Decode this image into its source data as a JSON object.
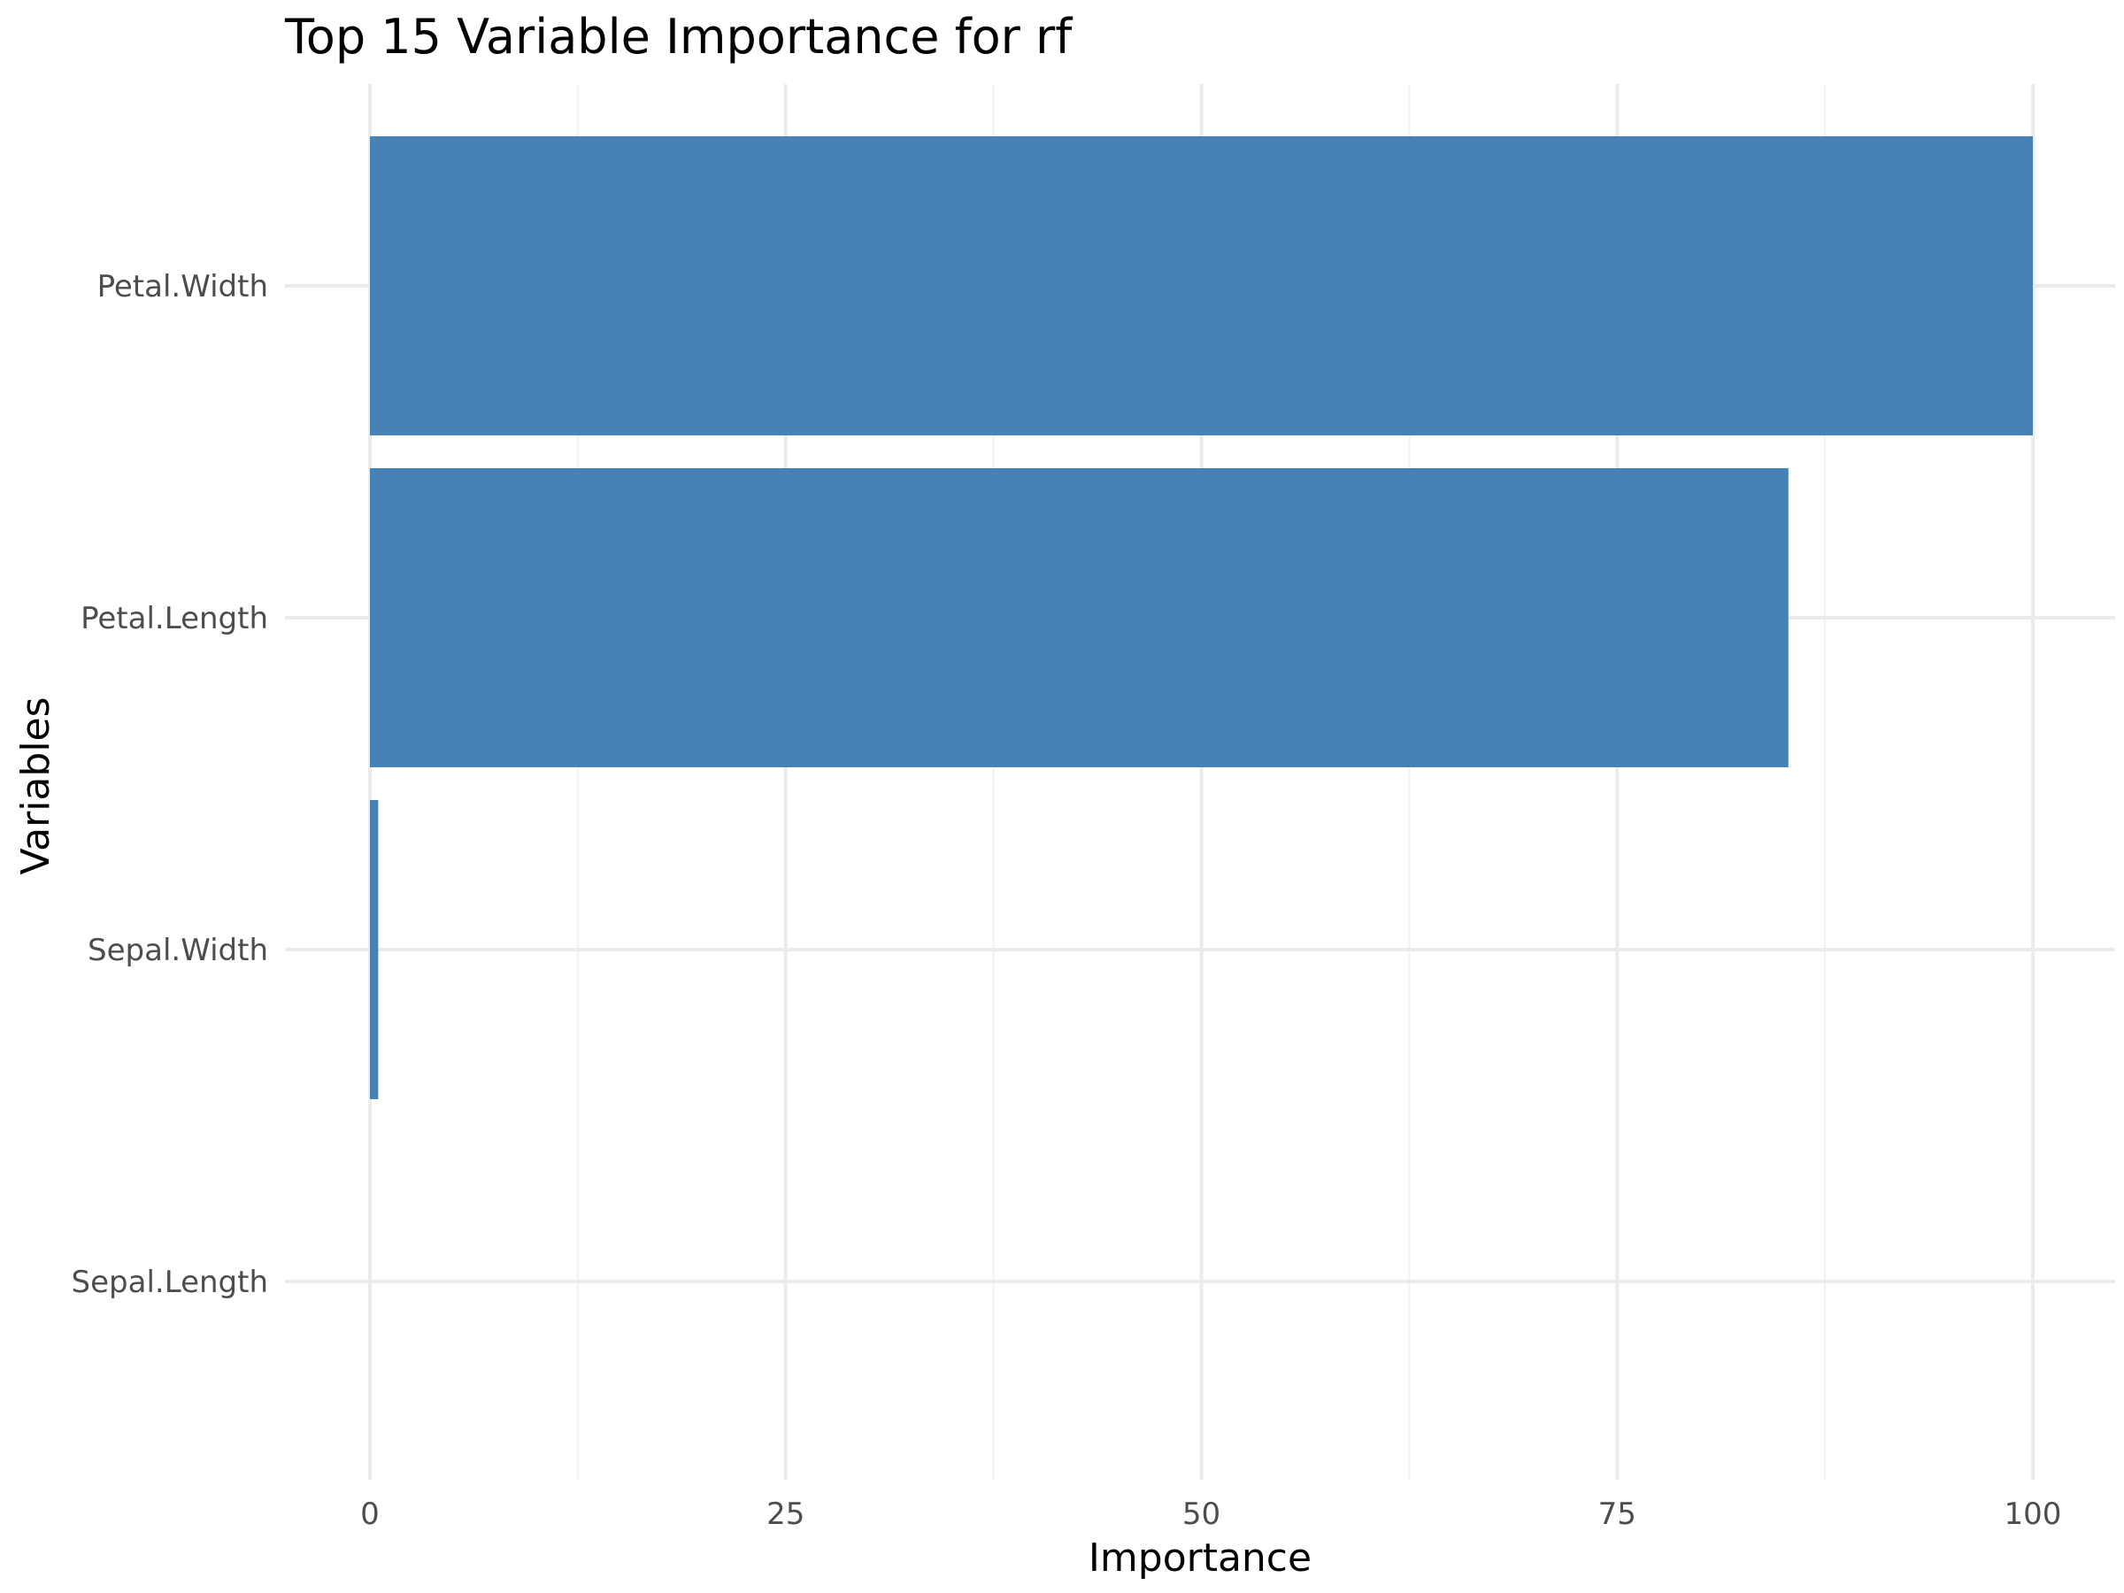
{
  "chart_data": {
    "type": "bar",
    "orientation": "horizontal",
    "title": "Top 15 Variable Importance for rf",
    "xlabel": "Importance",
    "ylabel": "Variables",
    "categories": [
      "Petal.Width",
      "Petal.Length",
      "Sepal.Width",
      "Sepal.Length"
    ],
    "values": [
      100,
      85.3,
      0.5,
      0
    ],
    "xlim": [
      0,
      100
    ],
    "xticks": [
      0,
      25,
      50,
      75,
      100
    ],
    "grid": true,
    "bar_color": "#4682B4"
  }
}
